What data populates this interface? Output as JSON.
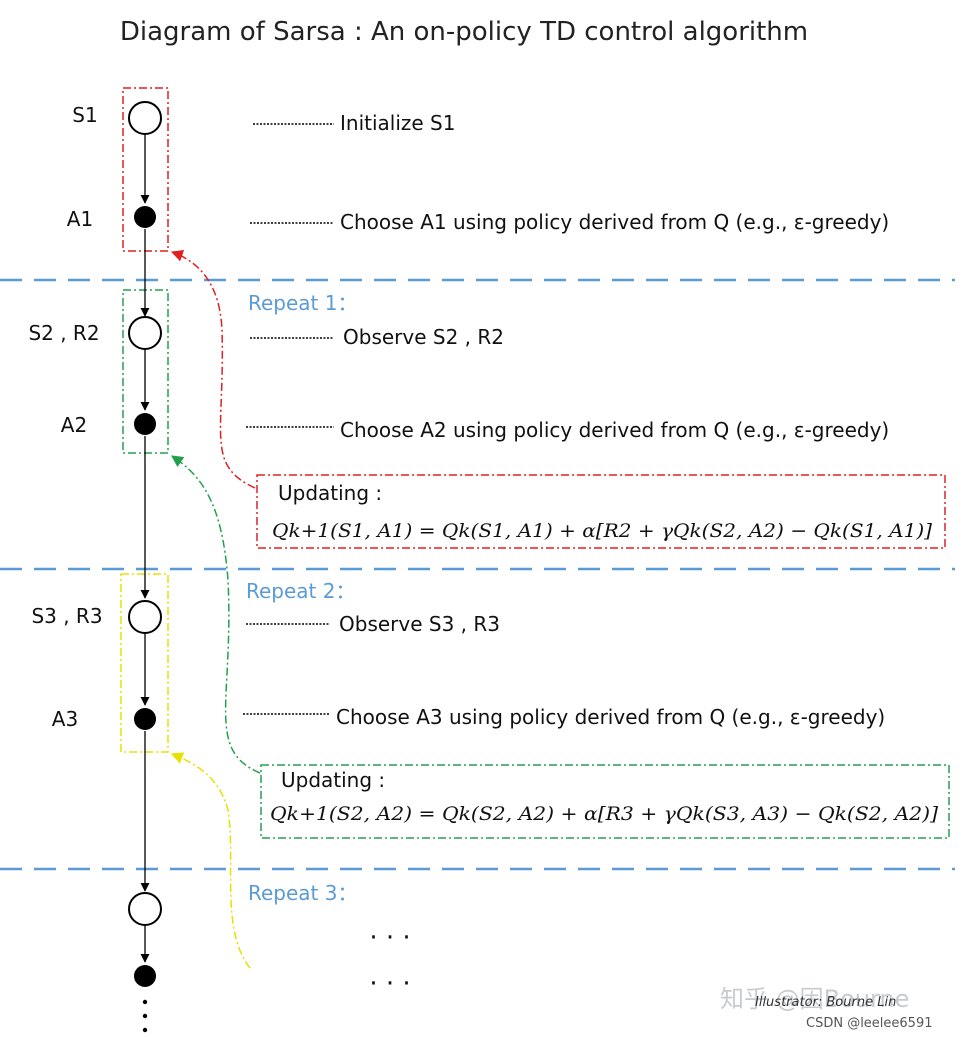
{
  "title": "Diagram of Sarsa : An on-policy TD control algorithm",
  "nodes": {
    "s1": "S1",
    "a1": "A1",
    "s2": "S2 , R2",
    "a2": "A2",
    "s3": "S3 , R3",
    "a3": "A3"
  },
  "steps": {
    "init_s1": "Initialize S1",
    "choose_a1": "Choose A1 using policy derived from Q (e.g., ε-greedy)",
    "observe_s2": "Observe S2 , R2",
    "choose_a2": "Choose A2 using policy derived from Q (e.g., ε-greedy)",
    "observe_s3": "Observe S3 , R3",
    "choose_a3": "Choose A3 using policy derived from Q (e.g., ε-greedy)"
  },
  "repeats": {
    "r1": "Repeat 1：",
    "r2": "Repeat 2：",
    "r3": "Repeat 3："
  },
  "updates": {
    "u1_label": "Updating :",
    "u1_eq": "Qk+1(S1, A1) = Qk(S1, A1) + α[R2 + γQk(S2, A2) − Qk(S1, A1)]",
    "u2_label": "Updating :",
    "u2_eq": "Qk+1(S2, A2) = Qk(S2, A2) + α[R3 + γQk(S3, A3) − Qk(S2, A2)]"
  },
  "continuation": {
    "ellipsis_1": "· · ·",
    "ellipsis_2": "· · ·"
  },
  "watermarks": {
    "zhihu": "知乎 @因Bourne",
    "illustrator": "Illustrator: Bourne Lin",
    "csdn": "CSDN @leelee6591"
  },
  "colors": {
    "red": "#e02020",
    "green": "#22a050",
    "yellow": "#e8e000",
    "blue_dash": "#5b9bd5",
    "node_fill": "#000000"
  }
}
